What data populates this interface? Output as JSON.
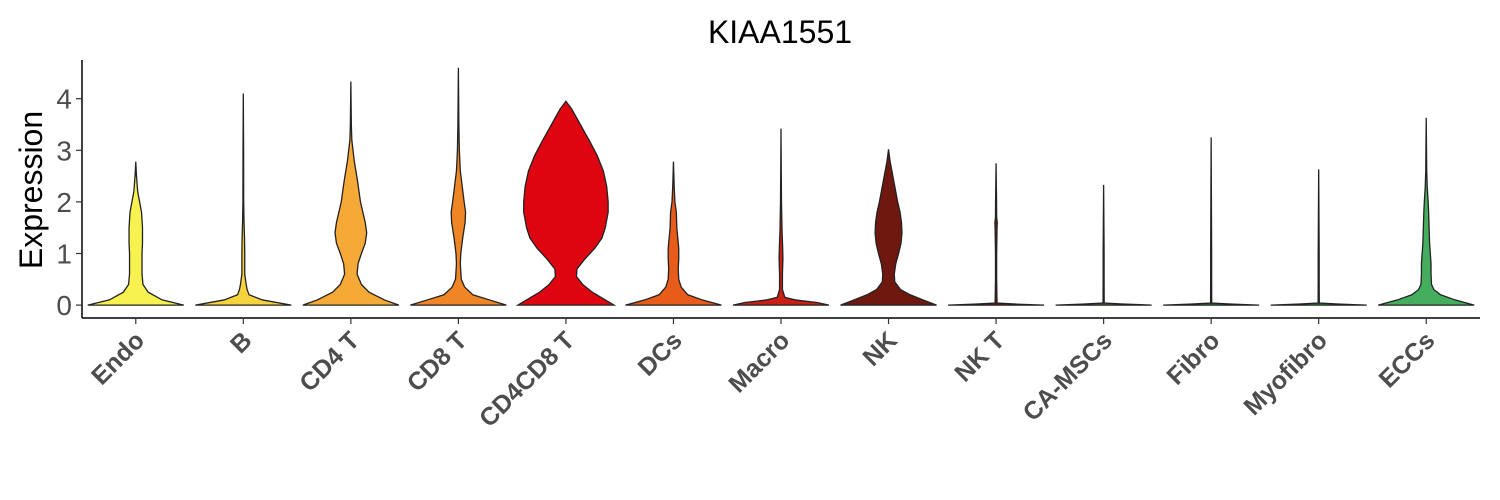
{
  "chart_data": {
    "type": "violin",
    "title": "KIAA1551",
    "xlabel": "",
    "ylabel": "Expression",
    "ylim": [
      -0.25,
      4.75
    ],
    "yticks": [
      0,
      1,
      2,
      3,
      4
    ],
    "grid": false,
    "legend": "none",
    "categories": [
      "Endo",
      "B",
      "CD4 T",
      "CD8 T",
      "CD4CD8 T",
      "DCs",
      "Macro",
      "NK",
      "NK T",
      "CA-MSCs",
      "Fibro",
      "Myofibro",
      "ECCs"
    ],
    "series": [
      {
        "category": "Endo",
        "color": "#F7F250",
        "max": 2.78,
        "density": [
          [
            0,
            1.0
          ],
          [
            0.1,
            0.55
          ],
          [
            0.25,
            0.26
          ],
          [
            0.4,
            0.15
          ],
          [
            0.6,
            0.13
          ],
          [
            0.8,
            0.13
          ],
          [
            1.0,
            0.13
          ],
          [
            1.2,
            0.14
          ],
          [
            1.5,
            0.14
          ],
          [
            1.8,
            0.12
          ],
          [
            2.0,
            0.08
          ],
          [
            2.2,
            0.04
          ],
          [
            2.5,
            0.015
          ],
          [
            2.78,
            0
          ]
        ]
      },
      {
        "category": "B",
        "color": "#F5D33F",
        "max": 4.1,
        "density": [
          [
            0,
            1.0
          ],
          [
            0.1,
            0.4
          ],
          [
            0.2,
            0.12
          ],
          [
            0.3,
            0.08
          ],
          [
            0.4,
            0.06
          ],
          [
            0.6,
            0.03
          ],
          [
            1.0,
            0.03
          ],
          [
            1.3,
            0.025
          ],
          [
            1.6,
            0.015
          ],
          [
            2.0,
            0.008
          ],
          [
            3.0,
            0.006
          ],
          [
            4.1,
            0
          ]
        ]
      },
      {
        "category": "CD4 T",
        "color": "#F5A936",
        "max": 4.33,
        "density": [
          [
            0,
            1.0
          ],
          [
            0.1,
            0.7
          ],
          [
            0.25,
            0.38
          ],
          [
            0.4,
            0.22
          ],
          [
            0.6,
            0.13
          ],
          [
            0.8,
            0.15
          ],
          [
            1.0,
            0.22
          ],
          [
            1.2,
            0.3
          ],
          [
            1.4,
            0.33
          ],
          [
            1.6,
            0.3
          ],
          [
            1.8,
            0.25
          ],
          [
            2.0,
            0.2
          ],
          [
            2.4,
            0.14
          ],
          [
            2.8,
            0.07
          ],
          [
            3.2,
            0.02
          ],
          [
            3.5,
            0.01
          ],
          [
            4.33,
            0
          ]
        ]
      },
      {
        "category": "CD8 T",
        "color": "#F08526",
        "max": 4.6,
        "density": [
          [
            0,
            1.0
          ],
          [
            0.1,
            0.65
          ],
          [
            0.2,
            0.3
          ],
          [
            0.35,
            0.13
          ],
          [
            0.5,
            0.06
          ],
          [
            0.8,
            0.04
          ],
          [
            1.0,
            0.05
          ],
          [
            1.3,
            0.09
          ],
          [
            1.6,
            0.14
          ],
          [
            1.8,
            0.15
          ],
          [
            2.0,
            0.12
          ],
          [
            2.3,
            0.08
          ],
          [
            2.6,
            0.04
          ],
          [
            3.0,
            0.02
          ],
          [
            3.5,
            0.01
          ],
          [
            4.6,
            0
          ]
        ]
      },
      {
        "category": "CD4CD8 T",
        "color": "#DE0410",
        "max": 3.95,
        "density": [
          [
            0,
            1.0
          ],
          [
            0.1,
            0.82
          ],
          [
            0.25,
            0.55
          ],
          [
            0.4,
            0.35
          ],
          [
            0.55,
            0.22
          ],
          [
            0.7,
            0.23
          ],
          [
            0.9,
            0.4
          ],
          [
            1.1,
            0.6
          ],
          [
            1.3,
            0.75
          ],
          [
            1.5,
            0.82
          ],
          [
            1.8,
            0.88
          ],
          [
            2.0,
            0.88
          ],
          [
            2.3,
            0.85
          ],
          [
            2.6,
            0.78
          ],
          [
            2.9,
            0.65
          ],
          [
            3.2,
            0.48
          ],
          [
            3.5,
            0.3
          ],
          [
            3.8,
            0.12
          ],
          [
            3.95,
            0
          ]
        ]
      },
      {
        "category": "DCs",
        "color": "#E85B1A",
        "max": 2.78,
        "density": [
          [
            0,
            1.0
          ],
          [
            0.1,
            0.6
          ],
          [
            0.2,
            0.3
          ],
          [
            0.35,
            0.16
          ],
          [
            0.5,
            0.11
          ],
          [
            0.7,
            0.1
          ],
          [
            0.9,
            0.11
          ],
          [
            1.1,
            0.11
          ],
          [
            1.3,
            0.09
          ],
          [
            1.5,
            0.07
          ],
          [
            1.8,
            0.06
          ],
          [
            2.0,
            0.03
          ],
          [
            2.3,
            0.015
          ],
          [
            2.78,
            0
          ]
        ]
      },
      {
        "category": "Macro",
        "color": "#C91E12",
        "max": 3.42,
        "density": [
          [
            0,
            1.0
          ],
          [
            0.05,
            0.75
          ],
          [
            0.1,
            0.3
          ],
          [
            0.15,
            0.08
          ],
          [
            0.3,
            0.03
          ],
          [
            0.6,
            0.03
          ],
          [
            0.9,
            0.04
          ],
          [
            1.1,
            0.035
          ],
          [
            1.5,
            0.02
          ],
          [
            2.0,
            0.01
          ],
          [
            2.5,
            0.006
          ],
          [
            3.42,
            0
          ]
        ]
      },
      {
        "category": "NK",
        "color": "#6E1810",
        "max": 3.02,
        "density": [
          [
            0,
            1.0
          ],
          [
            0.1,
            0.72
          ],
          [
            0.2,
            0.45
          ],
          [
            0.3,
            0.25
          ],
          [
            0.45,
            0.13
          ],
          [
            0.6,
            0.12
          ],
          [
            0.8,
            0.15
          ],
          [
            1.0,
            0.21
          ],
          [
            1.2,
            0.26
          ],
          [
            1.4,
            0.28
          ],
          [
            1.6,
            0.27
          ],
          [
            1.8,
            0.24
          ],
          [
            2.0,
            0.19
          ],
          [
            2.3,
            0.13
          ],
          [
            2.6,
            0.07
          ],
          [
            2.8,
            0.03
          ],
          [
            3.02,
            0
          ]
        ]
      },
      {
        "category": "NK T",
        "color": "#6A1A1A",
        "max": 2.75,
        "density": [
          [
            0,
            1.0
          ],
          [
            0.02,
            0.4
          ],
          [
            0.04,
            0.02
          ],
          [
            0.5,
            0.012
          ],
          [
            1.0,
            0.012
          ],
          [
            1.5,
            0.02
          ],
          [
            1.6,
            0.025
          ],
          [
            1.7,
            0.012
          ],
          [
            2.0,
            0.01
          ],
          [
            2.75,
            0
          ]
        ]
      },
      {
        "category": "CA-MSCs",
        "color": "#4E6A3C",
        "max": 2.33,
        "density": [
          [
            0,
            1.0
          ],
          [
            0.02,
            0.4
          ],
          [
            0.04,
            0.012
          ],
          [
            0.5,
            0.01
          ],
          [
            1.0,
            0.01
          ],
          [
            2.33,
            0
          ]
        ]
      },
      {
        "category": "Fibro",
        "color": "#2E7D32",
        "max": 3.25,
        "density": [
          [
            0,
            1.0
          ],
          [
            0.02,
            0.4
          ],
          [
            0.04,
            0.012
          ],
          [
            0.5,
            0.01
          ],
          [
            1.0,
            0.01
          ],
          [
            3.25,
            0
          ]
        ]
      },
      {
        "category": "Myofibro",
        "color": "#2E8B3A",
        "max": 2.63,
        "density": [
          [
            0,
            1.0
          ],
          [
            0.02,
            0.4
          ],
          [
            0.04,
            0.012
          ],
          [
            0.5,
            0.01
          ],
          [
            1.0,
            0.01
          ],
          [
            2.63,
            0
          ]
        ]
      },
      {
        "category": "ECCs",
        "color": "#45AE5E",
        "max": 3.63,
        "density": [
          [
            0,
            1.0
          ],
          [
            0.1,
            0.6
          ],
          [
            0.2,
            0.3
          ],
          [
            0.3,
            0.16
          ],
          [
            0.4,
            0.11
          ],
          [
            0.6,
            0.1
          ],
          [
            0.8,
            0.1
          ],
          [
            1.0,
            0.085
          ],
          [
            1.2,
            0.07
          ],
          [
            1.5,
            0.06
          ],
          [
            1.8,
            0.05
          ],
          [
            2.0,
            0.04
          ],
          [
            2.3,
            0.02
          ],
          [
            2.6,
            0.01
          ],
          [
            3.0,
            0.006
          ],
          [
            3.63,
            0
          ]
        ]
      }
    ]
  }
}
